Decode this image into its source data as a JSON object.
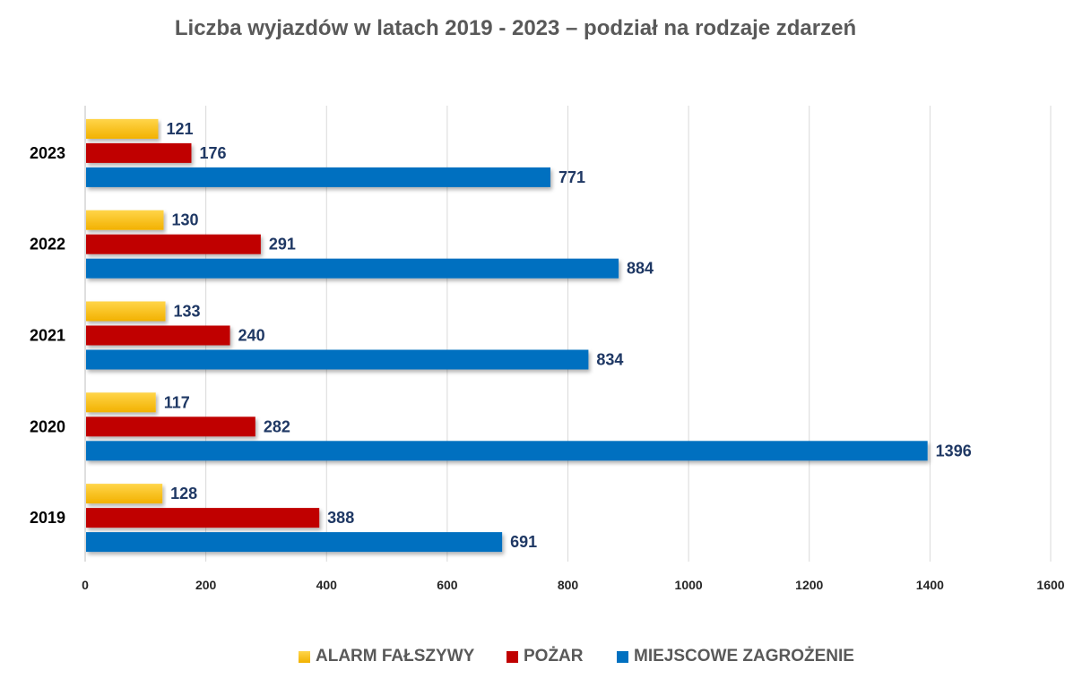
{
  "chart_data": {
    "type": "bar",
    "orientation": "horizontal",
    "title": "Liczba wyjazdów w latach 2019 - 2023 – podział na rodzaje zdarzeń",
    "categories": [
      "2019",
      "2020",
      "2021",
      "2022",
      "2023"
    ],
    "series": [
      {
        "name": "ALARM FAŁSZYWY",
        "color": "#FFC000",
        "values": [
          128,
          117,
          133,
          130,
          121
        ]
      },
      {
        "name": "POŻAR",
        "color": "#C00000",
        "values": [
          388,
          282,
          240,
          291,
          176
        ]
      },
      {
        "name": "MIEJSCOWE ZAGROŻENIE",
        "color": "#0070C0",
        "values": [
          691,
          1396,
          834,
          884,
          771
        ]
      }
    ],
    "xlim": [
      0,
      1600
    ],
    "xticks": [
      "0",
      "200",
      "400",
      "600",
      "800",
      "1000",
      "1200",
      "1400",
      "1600"
    ],
    "grid": true,
    "legend": "bottom",
    "data_labels": true,
    "label_color": "#1F3864"
  }
}
